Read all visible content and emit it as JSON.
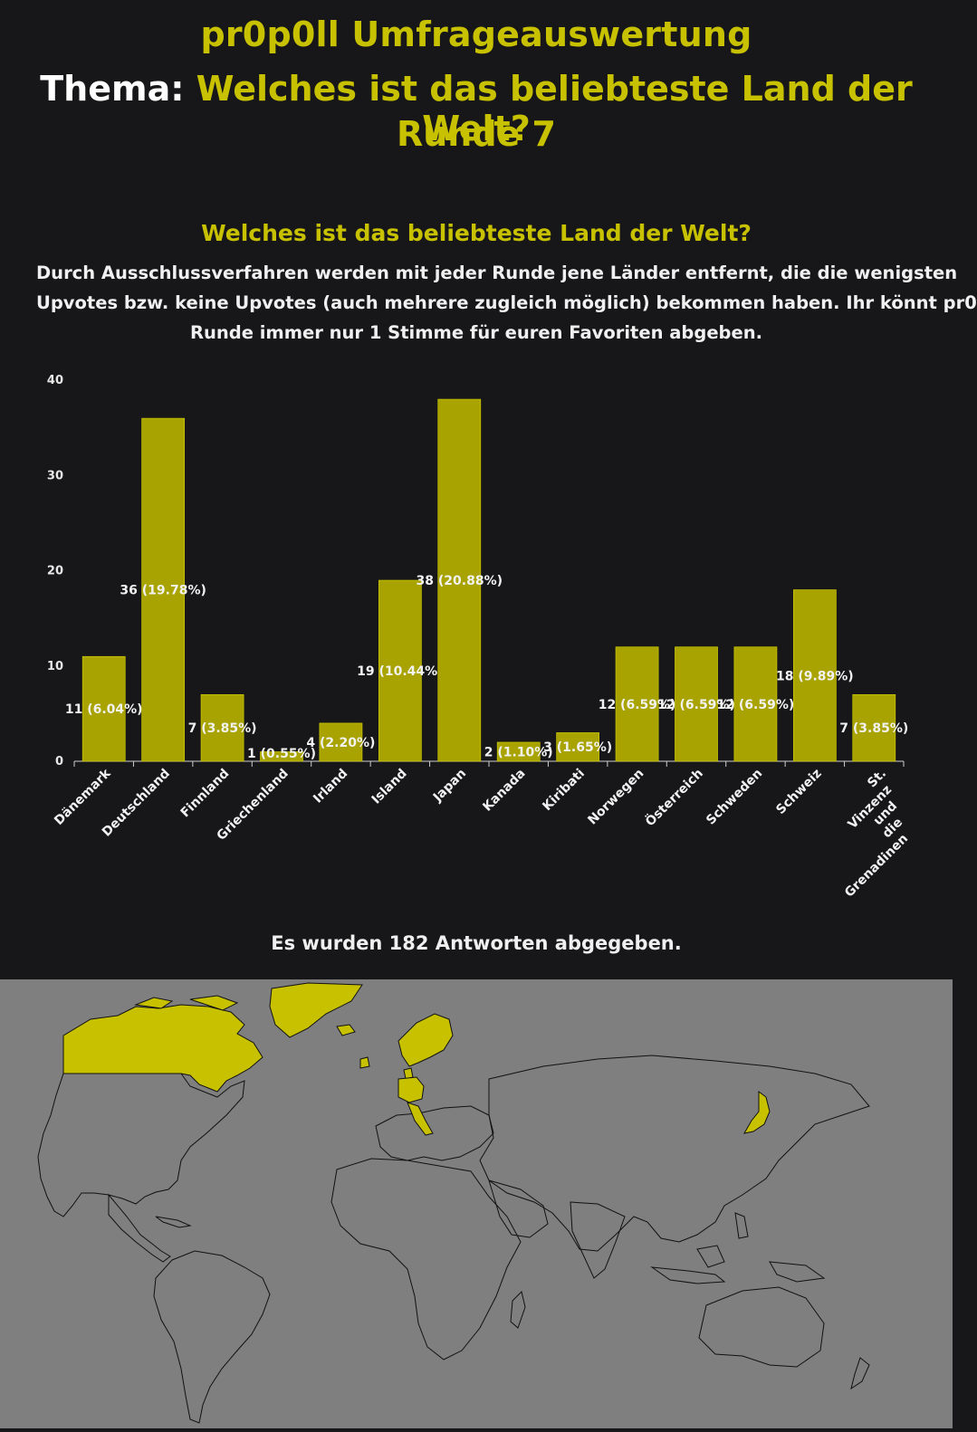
{
  "header": {
    "app_title": "pr0p0ll Umfrageauswertung",
    "topic_label": "Thema:",
    "topic_text": "Welches ist das beliebteste Land der Welt?",
    "round": "Runde 7"
  },
  "description_lines": [
    "Durch Ausschlussverfahren werden mit jeder Runde jene Länder entfernt, die die wenigsten",
    "Upvotes bzw. keine Upvotes (auch mehrere zugleich möglich) bekommen haben. Ihr könnt pr0",
    "Runde immer nur 1 Stimme für euren Favoriten abgeben."
  ],
  "answers_text": "Es wurden 182 Antworten abgegeben.",
  "colors": {
    "accent": "#c7c100",
    "bar": "#a8a300",
    "background": "#171719",
    "map_background": "#7f7f7f",
    "map_highlight": "#c7c100"
  },
  "chart_data": {
    "type": "bar",
    "title": "Welches ist das beliebteste Land der Welt?",
    "xlabel": "",
    "ylabel": "",
    "ylim": [
      0,
      40
    ],
    "yticks": [
      0,
      10,
      20,
      30,
      40
    ],
    "grid": false,
    "categories": [
      "Dänemark",
      "Deutschland",
      "Finnland",
      "Griechenland",
      "Irland",
      "Island",
      "Japan",
      "Kanada",
      "Kiribati",
      "Norwegen",
      "Österreich",
      "Schweden",
      "Schweiz",
      "St. Vinzenz und die Grenadinen"
    ],
    "values": [
      11,
      36,
      7,
      1,
      4,
      19,
      38,
      2,
      3,
      12,
      12,
      12,
      18,
      7
    ],
    "data_labels": [
      "11 (6.04%)",
      "36 (19.78%)",
      "7 (3.85%)",
      "1 (0.55%)",
      "4 (2.20%)",
      "19 (10.44%)",
      "38 (20.88%)",
      "2 (1.10%)",
      "3 (1.65%)",
      "12 (6.59%)",
      "12 (6.59%)",
      "12 (6.59%)",
      "18 (9.89%)",
      "7 (3.85%)"
    ]
  },
  "map": {
    "highlighted_countries": [
      "Kanada",
      "Grönland",
      "Island",
      "Irland",
      "Dänemark",
      "Norwegen",
      "Schweden",
      "Finnland",
      "Deutschland",
      "Österreich",
      "Schweiz",
      "Italien",
      "Japan"
    ]
  }
}
